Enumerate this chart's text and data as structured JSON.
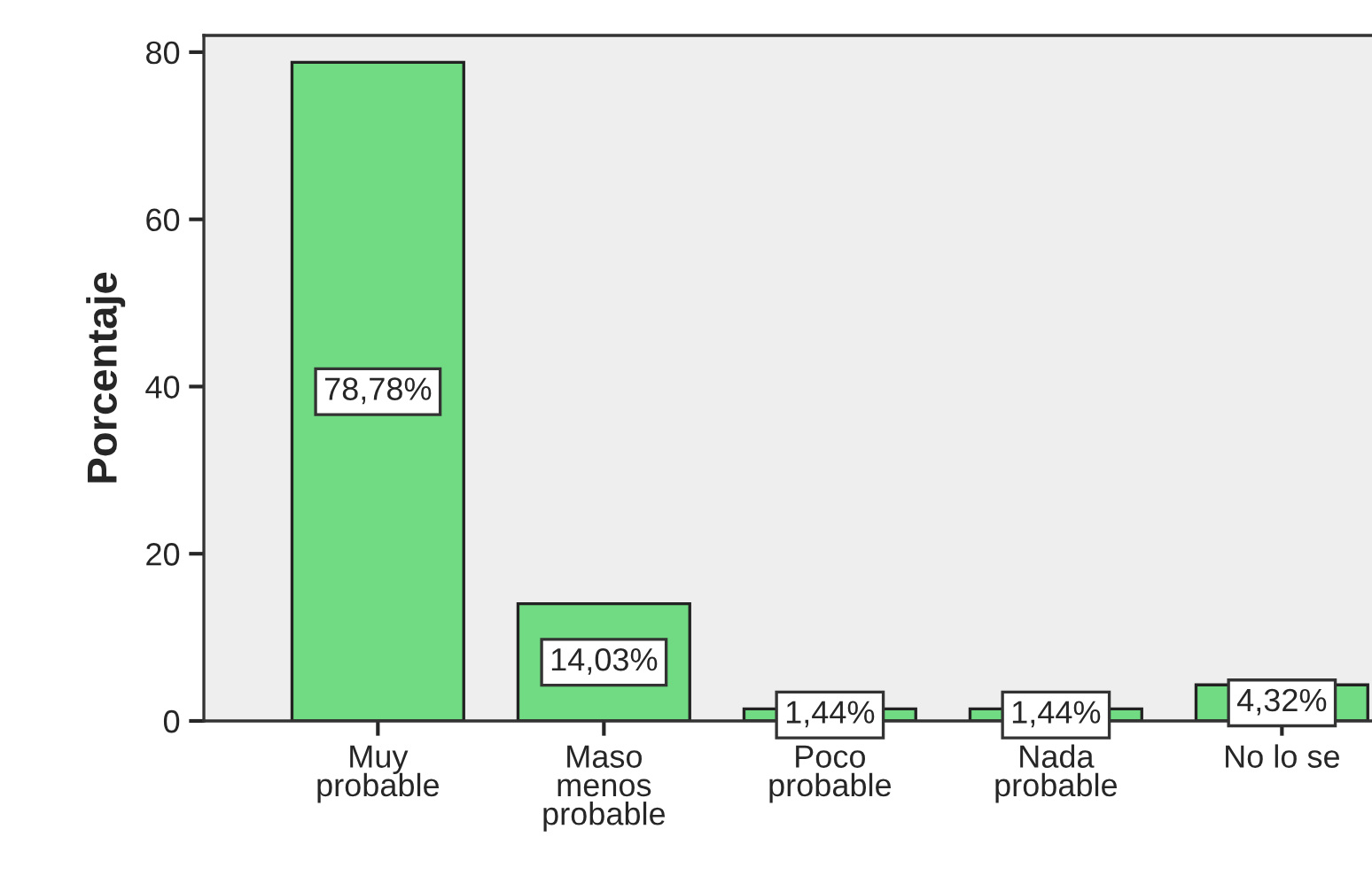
{
  "chart_data": {
    "type": "bar",
    "ylabel": "Porcentaje",
    "categories": [
      "Muy\nprobable",
      "Maso\nmenos\nprobable",
      "Poco\nprobable",
      "Nada\nprobable",
      "No lo se"
    ],
    "values": [
      78.78,
      14.03,
      1.44,
      1.44,
      4.32
    ],
    "value_labels": [
      "78,78%",
      "14,03%",
      "1,44%",
      "1,44%",
      "4,32%"
    ],
    "color": "#70db82",
    "ylim": [
      0,
      82
    ],
    "yticks": [
      0,
      20,
      40,
      60,
      80
    ],
    "grid": false,
    "legend": false
  }
}
